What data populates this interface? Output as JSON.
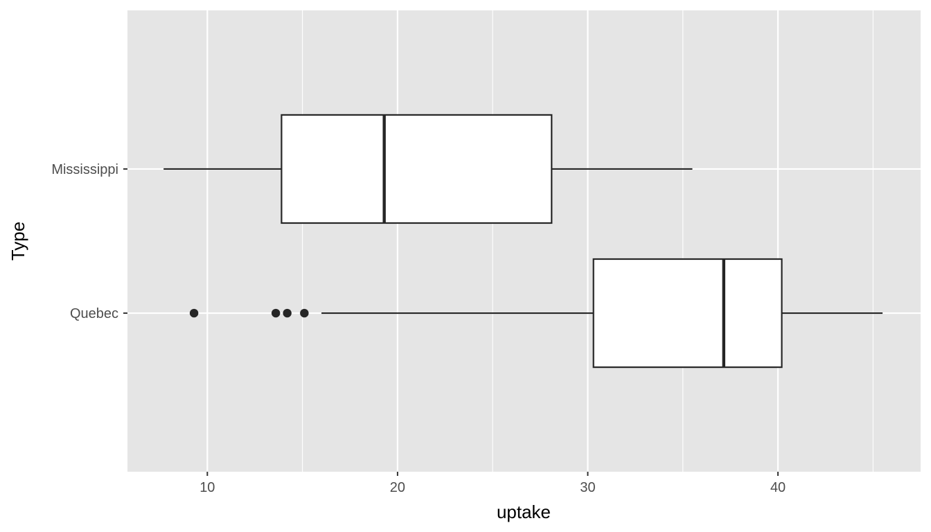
{
  "chart_data": {
    "type": "boxplot",
    "orientation": "horizontal",
    "title": "",
    "xlabel": "uptake",
    "ylabel": "Type",
    "xlim": [
      5.8,
      47.5
    ],
    "x_ticks": [
      10,
      20,
      30,
      40
    ],
    "x_minor_ticks": [
      15,
      25,
      35,
      45
    ],
    "grid": true,
    "legend": "none",
    "categories": [
      "Mississippi",
      "Quebec"
    ],
    "boxes": [
      {
        "category": "Mississippi",
        "whisker_low": 7.7,
        "q1": 13.9,
        "median": 19.3,
        "q3": 28.1,
        "whisker_high": 35.5,
        "outliers": []
      },
      {
        "category": "Quebec",
        "whisker_low": 16.0,
        "q1": 30.3,
        "median": 37.15,
        "q3": 40.2,
        "whisker_high": 45.5,
        "outliers": [
          9.3,
          13.6,
          14.2,
          15.1
        ]
      }
    ],
    "colors": {
      "panel": "#e5e5e5",
      "grid": "#ffffff",
      "box_fill": "#ffffff",
      "line": "#262626",
      "tick_text": "#4d4d4d"
    }
  }
}
